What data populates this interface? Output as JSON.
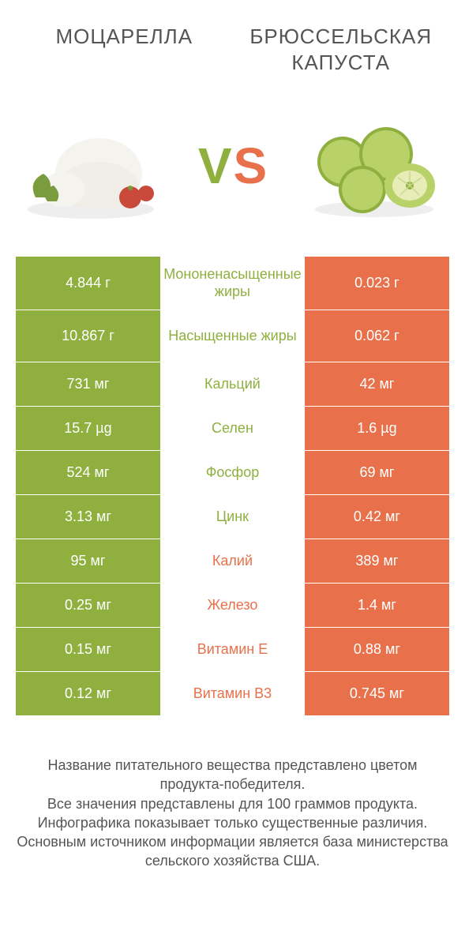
{
  "colors": {
    "left_bg": "#8fb03f",
    "right_bg": "#e8714b",
    "left_text": "#8fb03f",
    "right_text": "#e8714b",
    "vs_v": "#8fb03f",
    "vs_s": "#e8714b",
    "body_text": "#555555",
    "row_border": "#ffffff",
    "cell_text": "#ffffff"
  },
  "header": {
    "left": "Моцарелла",
    "right": "Брюссельская капуста"
  },
  "vs": {
    "v": "V",
    "s": "S"
  },
  "rows": [
    {
      "left": "4.844 г",
      "mid": "Мононенасыщенные жиры",
      "right": "0.023 г",
      "winner": "left"
    },
    {
      "left": "10.867 г",
      "mid": "Насыщенные жиры",
      "right": "0.062 г",
      "winner": "left"
    },
    {
      "left": "731 мг",
      "mid": "Кальций",
      "right": "42 мг",
      "winner": "left"
    },
    {
      "left": "15.7 µg",
      "mid": "Селен",
      "right": "1.6 µg",
      "winner": "left"
    },
    {
      "left": "524 мг",
      "mid": "Фосфор",
      "right": "69 мг",
      "winner": "left"
    },
    {
      "left": "3.13 мг",
      "mid": "Цинк",
      "right": "0.42 мг",
      "winner": "left"
    },
    {
      "left": "95 мг",
      "mid": "Калий",
      "right": "389 мг",
      "winner": "right"
    },
    {
      "left": "0.25 мг",
      "mid": "Железо",
      "right": "1.4 мг",
      "winner": "right"
    },
    {
      "left": "0.15 мг",
      "mid": "Витамин E",
      "right": "0.88 мг",
      "winner": "right"
    },
    {
      "left": "0.12 мг",
      "mid": "Витамин B3",
      "right": "0.745 мг",
      "winner": "right"
    }
  ],
  "footer": {
    "l1": "Название питательного вещества представлено цветом продукта-победителя.",
    "l2": "Все значения представлены для 100 граммов продукта.",
    "l3": "Инфографика показывает только существенные различия.",
    "l4": "Основным источником информации является база министерства сельского хозяйства США."
  },
  "typography": {
    "header_fontsize": 26,
    "vs_fontsize": 64,
    "cell_fontsize": 18,
    "footer_fontsize": 18
  }
}
